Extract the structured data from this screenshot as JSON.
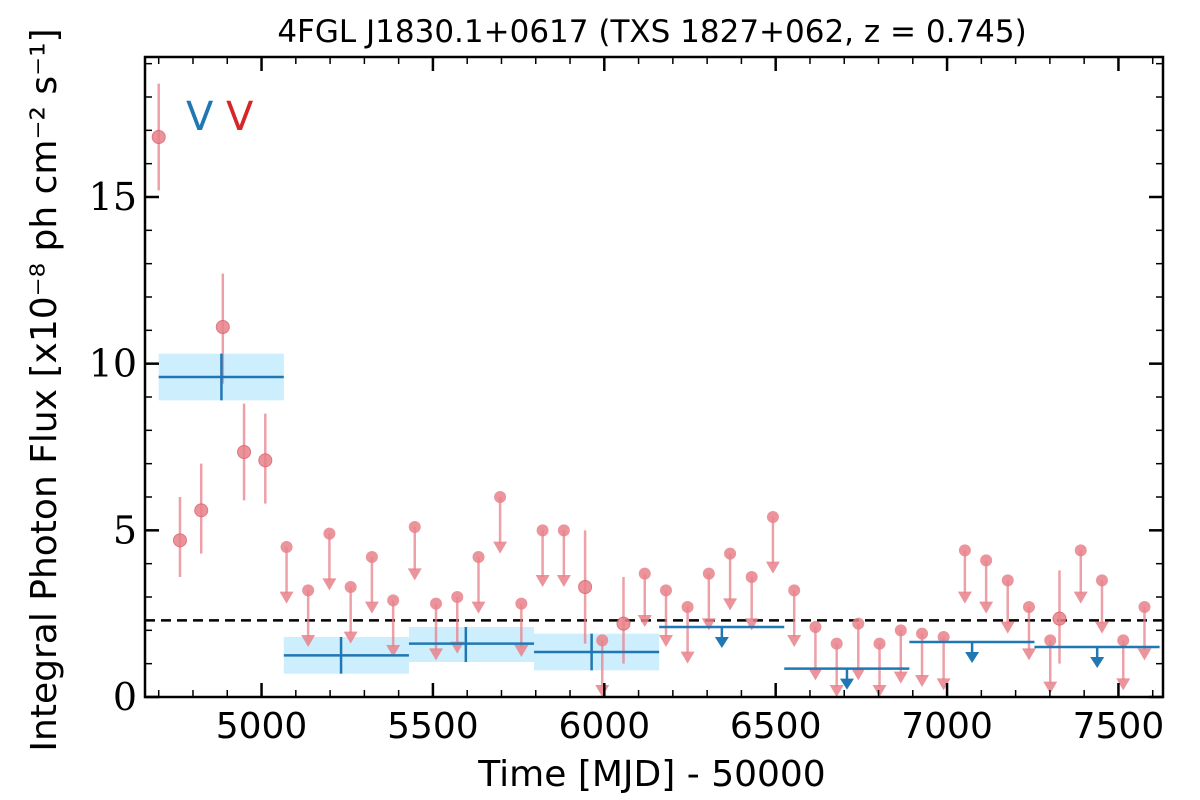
{
  "chart_data": {
    "type": "scatter",
    "title": "4FGL J1830.1+0617 (TXS 1827+062, z = 0.745)",
    "xlabel": "Time [MJD] - 50000",
    "ylabel": "Integral Photon Flux [x10⁻⁸ ph cm⁻² s⁻¹]",
    "xlim": [
      4660,
      7630
    ],
    "ylim": [
      0,
      19.2
    ],
    "xticks": [
      5000,
      5500,
      6000,
      6500,
      7000,
      7500
    ],
    "yticks": [
      0,
      5,
      10,
      15
    ],
    "hline": 2.3,
    "legend": {
      "position": "top-left",
      "entries": [
        {
          "label": "V",
          "color": "#1f77b4"
        },
        {
          "label": "V",
          "color": "#d62728"
        }
      ]
    },
    "colors": {
      "monthly": "#e8818a",
      "yearly": "#1f77b4",
      "band": "#cdeefc",
      "hline": "#000000"
    },
    "series": [
      {
        "name": "",
        "color": "#e8818a",
        "detections": [
          {
            "x": 4700,
            "y": 16.8,
            "lo": 15.2,
            "hi": 18.4
          },
          {
            "x": 4762,
            "y": 4.7,
            "lo": 3.6,
            "hi": 6.0
          },
          {
            "x": 4824,
            "y": 5.6,
            "lo": 4.3,
            "hi": 7.0
          },
          {
            "x": 4887,
            "y": 11.1,
            "lo": 9.4,
            "hi": 12.7
          },
          {
            "x": 4949,
            "y": 7.35,
            "lo": 5.9,
            "hi": 8.8
          },
          {
            "x": 5011,
            "y": 7.1,
            "lo": 5.8,
            "hi": 8.5
          },
          {
            "x": 5944,
            "y": 3.3,
            "lo": 1.6,
            "hi": 5.0
          },
          {
            "x": 6056,
            "y": 2.2,
            "lo": 1.0,
            "hi": 3.6
          },
          {
            "x": 7328,
            "y": 2.35,
            "lo": 1.0,
            "hi": 3.8
          }
        ],
        "upper_limits": [
          {
            "x": 5073,
            "y": 4.5,
            "bottom": 3.1
          },
          {
            "x": 5136,
            "y": 3.2,
            "bottom": 1.8
          },
          {
            "x": 5198,
            "y": 4.9,
            "bottom": 3.5
          },
          {
            "x": 5260,
            "y": 3.3,
            "bottom": 1.9
          },
          {
            "x": 5322,
            "y": 4.2,
            "bottom": 2.8
          },
          {
            "x": 5384,
            "y": 2.9,
            "bottom": 1.5
          },
          {
            "x": 5447,
            "y": 5.1,
            "bottom": 3.8
          },
          {
            "x": 5509,
            "y": 2.8,
            "bottom": 1.4
          },
          {
            "x": 5571,
            "y": 3.0,
            "bottom": 1.6
          },
          {
            "x": 5633,
            "y": 4.2,
            "bottom": 2.8
          },
          {
            "x": 5696,
            "y": 6.0,
            "bottom": 4.6
          },
          {
            "x": 5758,
            "y": 2.8,
            "bottom": 1.5
          },
          {
            "x": 5820,
            "y": 5.0,
            "bottom": 3.6
          },
          {
            "x": 5882,
            "y": 5.0,
            "bottom": 3.6
          },
          {
            "x": 5994,
            "y": 1.7,
            "bottom": 0.3
          },
          {
            "x": 6118,
            "y": 3.7,
            "bottom": 2.4
          },
          {
            "x": 6180,
            "y": 3.2,
            "bottom": 1.8
          },
          {
            "x": 6243,
            "y": 2.7,
            "bottom": 1.3
          },
          {
            "x": 6305,
            "y": 3.7,
            "bottom": 2.3
          },
          {
            "x": 6367,
            "y": 4.3,
            "bottom": 2.9
          },
          {
            "x": 6430,
            "y": 3.6,
            "bottom": 2.3
          },
          {
            "x": 6492,
            "y": 5.4,
            "bottom": 4.0
          },
          {
            "x": 6554,
            "y": 3.2,
            "bottom": 1.8
          },
          {
            "x": 6616,
            "y": 2.1,
            "bottom": 0.8
          },
          {
            "x": 6678,
            "y": 1.6,
            "bottom": 0.3
          },
          {
            "x": 6741,
            "y": 2.2,
            "bottom": 0.8
          },
          {
            "x": 6803,
            "y": 1.6,
            "bottom": 0.3
          },
          {
            "x": 6865,
            "y": 2.0,
            "bottom": 0.7
          },
          {
            "x": 6927,
            "y": 1.9,
            "bottom": 0.6
          },
          {
            "x": 6990,
            "y": 1.8,
            "bottom": 0.5
          },
          {
            "x": 7052,
            "y": 4.4,
            "bottom": 3.1
          },
          {
            "x": 7114,
            "y": 4.1,
            "bottom": 2.8
          },
          {
            "x": 7177,
            "y": 3.5,
            "bottom": 2.2
          },
          {
            "x": 7239,
            "y": 2.7,
            "bottom": 1.4
          },
          {
            "x": 7301,
            "y": 1.7,
            "bottom": 0.4
          },
          {
            "x": 7390,
            "y": 4.4,
            "bottom": 3.1
          },
          {
            "x": 7452,
            "y": 3.5,
            "bottom": 2.2
          },
          {
            "x": 7514,
            "y": 1.7,
            "bottom": 0.5
          },
          {
            "x": 7576,
            "y": 2.7,
            "bottom": 1.4
          }
        ]
      },
      {
        "name": "",
        "color": "#1f77b4",
        "bins": [
          {
            "x0": 4700,
            "x1": 5065,
            "y": 9.6,
            "lo": 8.9,
            "hi": 10.3,
            "xc": 4883
          },
          {
            "x0": 5065,
            "x1": 5430,
            "y": 1.25,
            "lo": 0.7,
            "hi": 1.8,
            "xc": 5232
          },
          {
            "x0": 5430,
            "x1": 5795,
            "y": 1.6,
            "lo": 1.05,
            "hi": 2.1,
            "xc": 5596
          },
          {
            "x0": 5795,
            "x1": 6160,
            "y": 1.35,
            "lo": 0.8,
            "hi": 1.9,
            "xc": 5963
          }
        ],
        "upper_limits": [
          {
            "x0": 6160,
            "x1": 6525,
            "y": 2.1,
            "xc": 6343
          },
          {
            "x0": 6525,
            "x1": 6890,
            "y": 0.85,
            "xc": 6708
          },
          {
            "x0": 6890,
            "x1": 7255,
            "y": 1.65,
            "xc": 7073
          },
          {
            "x0": 7255,
            "x1": 7620,
            "y": 1.5,
            "xc": 7438
          }
        ]
      }
    ]
  }
}
